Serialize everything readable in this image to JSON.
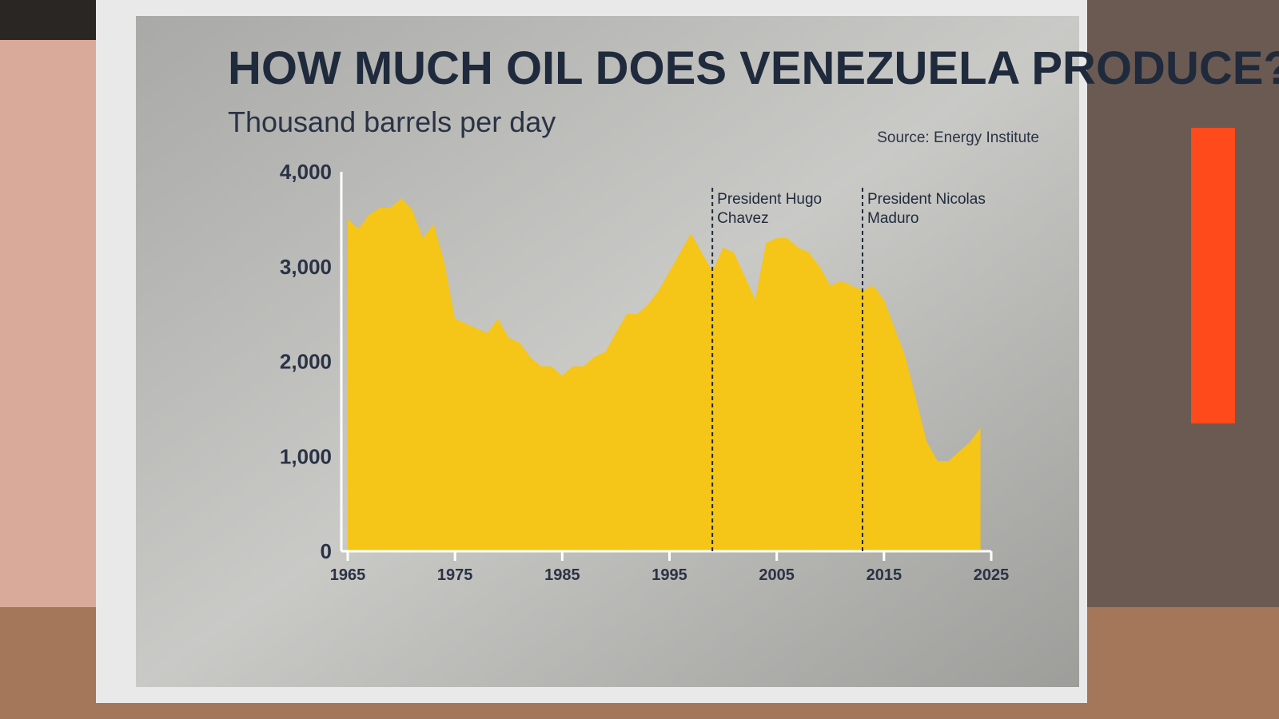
{
  "chart_data": {
    "type": "area",
    "title": "HOW MUCH OIL DOES VENEZUELA PRODUCE?",
    "subtitle": "Thousand barrels per day",
    "source": "Source: Energy Institute",
    "color": "#f5c518",
    "x": [
      1965,
      1966,
      1967,
      1968,
      1969,
      1970,
      1971,
      1972,
      1973,
      1974,
      1975,
      1976,
      1977,
      1978,
      1979,
      1980,
      1981,
      1982,
      1983,
      1984,
      1985,
      1986,
      1987,
      1988,
      1989,
      1990,
      1991,
      1992,
      1993,
      1994,
      1995,
      1996,
      1997,
      1998,
      1999,
      2000,
      2001,
      2002,
      2003,
      2004,
      2005,
      2006,
      2007,
      2008,
      2009,
      2010,
      2011,
      2012,
      2013,
      2014,
      2015,
      2016,
      2017,
      2018,
      2019,
      2020,
      2021,
      2022,
      2023,
      2024
    ],
    "values": [
      3500,
      3400,
      3550,
      3620,
      3620,
      3720,
      3600,
      3300,
      3450,
      3050,
      2450,
      2400,
      2350,
      2300,
      2450,
      2250,
      2200,
      2050,
      1950,
      1950,
      1850,
      1950,
      1950,
      2050,
      2100,
      2300,
      2500,
      2500,
      2600,
      2750,
      2950,
      3150,
      3350,
      3150,
      2950,
      3200,
      3150,
      2900,
      2650,
      3250,
      3300,
      3300,
      3200,
      3150,
      3000,
      2800,
      2850,
      2800,
      2750,
      2800,
      2650,
      2350,
      2050,
      1600,
      1150,
      950,
      950,
      1050,
      1150,
      1300
    ],
    "xlim": [
      1965,
      2025
    ],
    "ylim": [
      0,
      4000
    ],
    "xticks": [
      1965,
      1975,
      1985,
      1995,
      2005,
      2015,
      2025
    ],
    "yticks": [
      0,
      {
        "value": 1000,
        "label": "1,000"
      },
      {
        "value": 2000,
        "label": "2,000"
      },
      {
        "value": 3000,
        "label": "3,000"
      },
      {
        "value": 4000,
        "label": "4,000"
      }
    ],
    "annotations": [
      {
        "x": 1999,
        "lines": [
          "President Hugo",
          "Chavez"
        ]
      },
      {
        "x": 2013,
        "lines": [
          "President Nicolas",
          "Maduro"
        ]
      }
    ]
  }
}
